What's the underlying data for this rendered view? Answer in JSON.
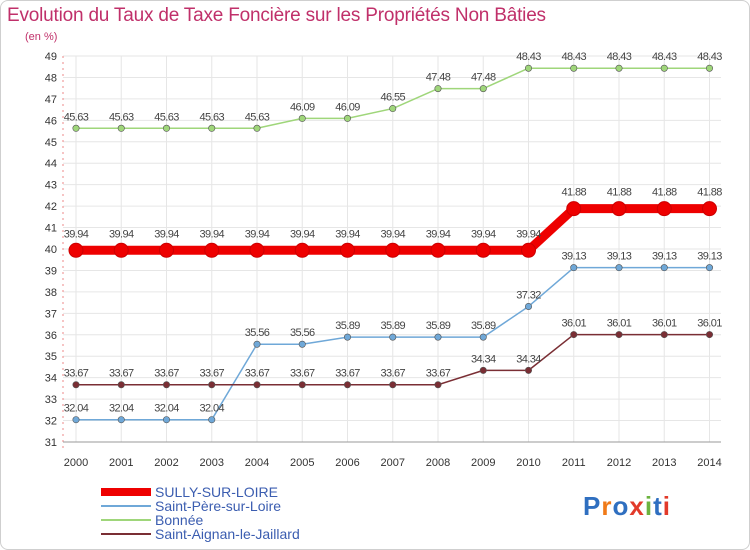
{
  "header": {
    "title": "Evolution du Taux de Taxe Foncière sur les Propriétés Non Bâties",
    "subtitle": "(en %)"
  },
  "chart_data": {
    "type": "line",
    "title": "Evolution du Taux de Taxe Foncière sur les Propriétés Non Bâties",
    "ylabel": "(en %)",
    "xlabel": "",
    "ylim": [
      31,
      49
    ],
    "yticks": [
      "31",
      "32",
      "33",
      "34",
      "35",
      "36",
      "37",
      "38",
      "39",
      "40",
      "41",
      "42",
      "43",
      "44",
      "45",
      "46",
      "47",
      "48",
      "49"
    ],
    "categories": [
      "2000",
      "2001",
      "2002",
      "2003",
      "2004",
      "2005",
      "2006",
      "2007",
      "2008",
      "2009",
      "2010",
      "2011",
      "2012",
      "2013",
      "2014"
    ],
    "series": [
      {
        "name": "SULLY-SUR-LOIRE",
        "color": "#ee0000",
        "emphasis": true,
        "values": [
          39.94,
          39.94,
          39.94,
          39.94,
          39.94,
          39.94,
          39.94,
          39.94,
          39.94,
          39.94,
          39.94,
          41.88,
          41.88,
          41.88,
          41.88
        ],
        "labels": [
          "39.94",
          "39.94",
          "39.94",
          "39.94",
          "39.94",
          "39.94",
          "39.94",
          "39.94",
          "39.94",
          "39.94",
          "39.94",
          "41.88",
          "41.88",
          "41.88",
          "41.88"
        ]
      },
      {
        "name": "Saint-Père-sur-Loire",
        "color": "#6fa8d8",
        "emphasis": false,
        "values": [
          32.04,
          32.04,
          32.04,
          32.04,
          35.56,
          35.56,
          35.89,
          35.89,
          35.89,
          35.89,
          37.32,
          39.13,
          39.13,
          39.13,
          39.13
        ],
        "labels": [
          "32.04",
          "32.04",
          "32.04",
          "32.04",
          "35.56",
          "35.56",
          "35.89",
          "35.89",
          "35.89",
          "35.89",
          "37.32",
          "39.13",
          "39.13",
          "39.13",
          "39.13"
        ]
      },
      {
        "name": "Bonnée",
        "color": "#9fd67a",
        "emphasis": false,
        "values": [
          45.63,
          45.63,
          45.63,
          45.63,
          45.63,
          46.09,
          46.09,
          46.55,
          47.48,
          47.48,
          48.43,
          48.43,
          48.43,
          48.43,
          48.43
        ],
        "labels": [
          "45.63",
          "45.63",
          "45.63",
          "45.63",
          "45.63",
          "46.09",
          "46.09",
          "46.55",
          "47.48",
          "47.48",
          "48.43",
          "48.43",
          "48.43",
          "48.43",
          "48.43"
        ]
      },
      {
        "name": "Saint-Aignan-le-Jaillard",
        "color": "#7a2e34",
        "emphasis": false,
        "values": [
          33.67,
          33.67,
          33.67,
          33.67,
          33.67,
          33.67,
          33.67,
          33.67,
          33.67,
          34.34,
          34.34,
          36.01,
          36.01,
          36.01,
          36.01
        ],
        "labels": [
          "33.67",
          "33.67",
          "33.67",
          "33.67",
          "33.67",
          "33.67",
          "33.67",
          "33.67",
          "33.67",
          "34.34",
          "34.34",
          "36.01",
          "36.01",
          "36.01",
          "36.01"
        ]
      }
    ],
    "legend_position": "bottom-left"
  },
  "branding": {
    "logo_text": "Proxiti",
    "logo_colors": [
      "#2f6fc0",
      "#f07a18",
      "#2f6fc0",
      "#e23a2a",
      "#6cb33f",
      "#2f6fc0",
      "#e23a2a"
    ]
  }
}
